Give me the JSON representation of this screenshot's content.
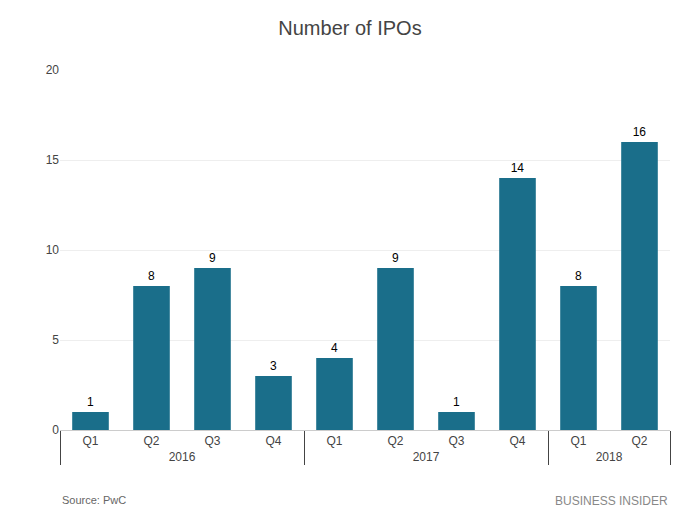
{
  "chart_data": {
    "type": "bar",
    "title": "Number of IPOs",
    "categories": [
      "Q1",
      "Q2",
      "Q3",
      "Q4",
      "Q1",
      "Q2",
      "Q3",
      "Q4",
      "Q1",
      "Q2"
    ],
    "values": [
      1,
      8,
      9,
      3,
      4,
      9,
      1,
      14,
      8,
      16
    ],
    "groups": [
      {
        "label": "2016",
        "count": 4
      },
      {
        "label": "2017",
        "count": 4
      },
      {
        "label": "2018",
        "count": 2
      }
    ],
    "color": "#1a6e8a",
    "ylim": [
      0,
      20
    ],
    "yticks": [
      0,
      5,
      10,
      15,
      20
    ],
    "grid": true,
    "data_labels": true,
    "annotations": [
      "Source: PwC",
      "BUSINESS INSIDER"
    ]
  }
}
